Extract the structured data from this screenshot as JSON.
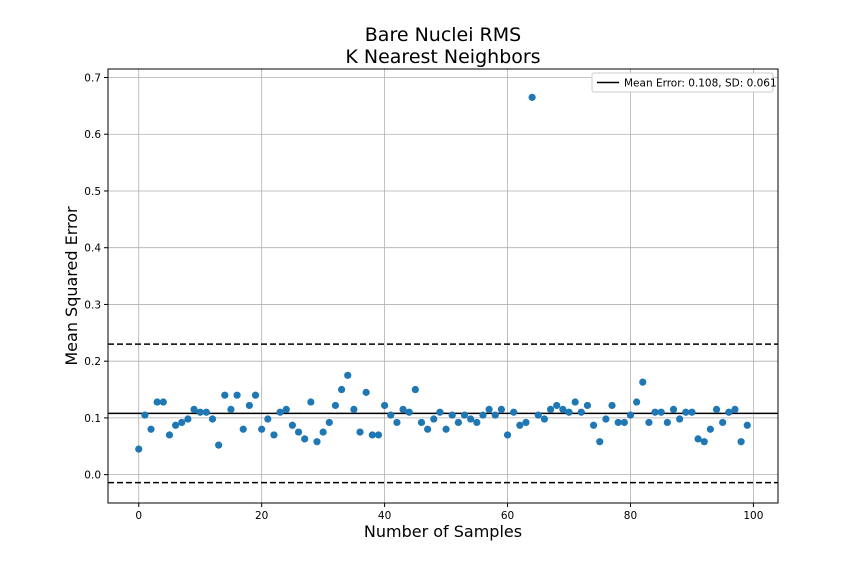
{
  "chart_data": {
    "type": "scatter",
    "title": "Bare Nuclei RMS",
    "subtitle": "K Nearest Neighbors",
    "xlabel": "Number of Samples",
    "ylabel": "Mean Squared Error",
    "xlim": [
      -5,
      104
    ],
    "ylim": [
      -0.05,
      0.715
    ],
    "xticks": [
      0,
      20,
      40,
      60,
      80,
      100
    ],
    "yticks": [
      0.0,
      0.1,
      0.2,
      0.3,
      0.4,
      0.5,
      0.6,
      0.7
    ],
    "xtick_labels": [
      "0",
      "20",
      "40",
      "60",
      "80",
      "100"
    ],
    "ytick_labels": [
      "0.0",
      "0.1",
      "0.2",
      "0.3",
      "0.4",
      "0.5",
      "0.6",
      "0.7"
    ],
    "grid": true,
    "legend": {
      "position": "top-right",
      "entries": [
        "Mean Error: 0.108, SD: 0.061"
      ]
    },
    "mean_line": 0.108,
    "upper_band": 0.23,
    "lower_band": -0.014,
    "series": [
      {
        "color": "#1f77b4",
        "x": [
          0,
          1,
          2,
          3,
          4,
          5,
          6,
          7,
          8,
          9,
          10,
          11,
          12,
          13,
          14,
          15,
          16,
          17,
          18,
          19,
          20,
          21,
          22,
          23,
          24,
          25,
          26,
          27,
          28,
          29,
          30,
          31,
          32,
          33,
          34,
          35,
          36,
          37,
          38,
          39,
          40,
          41,
          42,
          43,
          44,
          45,
          46,
          47,
          48,
          49,
          50,
          51,
          52,
          53,
          54,
          55,
          56,
          57,
          58,
          59,
          60,
          61,
          62,
          63,
          64,
          65,
          66,
          67,
          68,
          69,
          70,
          71,
          72,
          73,
          74,
          75,
          76,
          77,
          78,
          79,
          80,
          81,
          82,
          83,
          84,
          85,
          86,
          87,
          88,
          89,
          90,
          91,
          92,
          93,
          94,
          95,
          96,
          97,
          98,
          99
        ],
        "y": [
          0.045,
          0.105,
          0.08,
          0.128,
          0.128,
          0.07,
          0.087,
          0.092,
          0.098,
          0.115,
          0.11,
          0.11,
          0.098,
          0.052,
          0.14,
          0.115,
          0.14,
          0.08,
          0.122,
          0.14,
          0.08,
          0.098,
          0.07,
          0.11,
          0.115,
          0.087,
          0.075,
          0.063,
          0.128,
          0.058,
          0.075,
          0.092,
          0.122,
          0.15,
          0.175,
          0.115,
          0.075,
          0.145,
          0.07,
          0.07,
          0.122,
          0.105,
          0.092,
          0.115,
          0.11,
          0.15,
          0.092,
          0.08,
          0.098,
          0.11,
          0.08,
          0.105,
          0.092,
          0.105,
          0.098,
          0.092,
          0.105,
          0.115,
          0.105,
          0.115,
          0.07,
          0.11,
          0.087,
          0.092,
          0.665,
          0.105,
          0.098,
          0.115,
          0.122,
          0.115,
          0.11,
          0.128,
          0.11,
          0.122,
          0.087,
          0.058,
          0.098,
          0.122,
          0.092,
          0.092,
          0.105,
          0.128,
          0.163,
          0.092,
          0.11,
          0.11,
          0.092,
          0.115,
          0.098,
          0.11,
          0.11,
          0.063,
          0.058,
          0.08,
          0.115,
          0.092,
          0.11,
          0.115,
          0.058,
          0.087
        ]
      }
    ]
  }
}
